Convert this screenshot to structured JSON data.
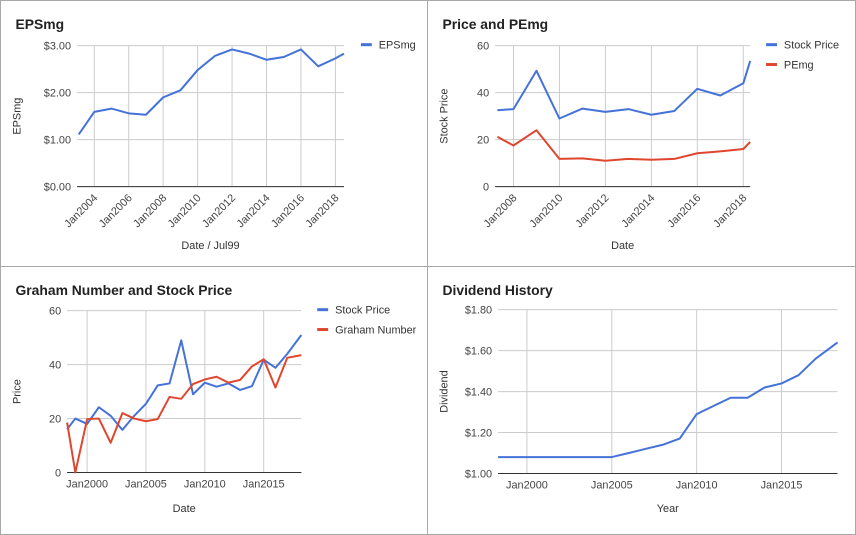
{
  "chart_data": [
    {
      "type": "line",
      "title": "EPSmg",
      "xlabel": "Date / Jul99",
      "ylabel": "EPSmg",
      "xlim": [
        2003.0,
        2018.5
      ],
      "ylim": [
        0,
        3
      ],
      "xticks": [
        2004,
        2006,
        2008,
        2010,
        2012,
        2014,
        2016,
        2018
      ],
      "xtick_labels": [
        "Jan2004",
        "Jan2006",
        "Jan2008",
        "Jan2010",
        "Jan2012",
        "Jan2014",
        "Jan2016",
        "Jan2018"
      ],
      "xtick_rotated": true,
      "yticks": [
        0,
        1,
        2,
        3
      ],
      "ytick_labels": [
        "$0.00",
        "$1.00",
        "$2.00",
        "$3.00"
      ],
      "grid": true,
      "legend_position": "top-right",
      "series": [
        {
          "name": "EPSmg",
          "color": "#4472d8",
          "x": [
            2003.1,
            2004.0,
            2005.0,
            2006.0,
            2007.0,
            2008.0,
            2009.0,
            2010.0,
            2011.0,
            2012.0,
            2013.0,
            2014.0,
            2015.0,
            2016.0,
            2017.0,
            2018.0,
            2018.5
          ],
          "y": [
            1.11,
            1.59,
            1.66,
            1.56,
            1.53,
            1.9,
            2.05,
            2.48,
            2.78,
            2.92,
            2.83,
            2.7,
            2.76,
            2.92,
            2.56,
            2.73,
            2.83
          ]
        }
      ]
    },
    {
      "type": "line",
      "title": "Price and PEmg",
      "xlabel": "Date",
      "ylabel": "Stock Price",
      "xlim": [
        2007.2,
        2018.3
      ],
      "ylim": [
        0,
        60
      ],
      "xticks": [
        2008,
        2010,
        2012,
        2014,
        2016,
        2018
      ],
      "xtick_labels": [
        "Jan2008",
        "Jan2010",
        "Jan2012",
        "Jan2014",
        "Jan2016",
        "Jan2018"
      ],
      "xtick_rotated": true,
      "yticks": [
        0,
        20,
        40,
        60
      ],
      "ytick_labels": [
        "0",
        "20",
        "40",
        "60"
      ],
      "grid": true,
      "legend_position": "top-right",
      "series": [
        {
          "name": "Stock Price",
          "color": "#4472d8",
          "x": [
            2007.3,
            2008.0,
            2009.0,
            2010.0,
            2011.0,
            2012.0,
            2013.0,
            2014.0,
            2015.0,
            2016.0,
            2017.0,
            2018.0,
            2018.3
          ],
          "y": [
            32.5,
            33.0,
            49.3,
            29.0,
            33.2,
            31.8,
            33.0,
            30.6,
            32.2,
            41.6,
            38.8,
            44.0,
            53.5
          ]
        },
        {
          "name": "PEmg",
          "color": "#e0462d",
          "x": [
            2007.3,
            2008.0,
            2009.0,
            2010.0,
            2011.0,
            2012.0,
            2013.0,
            2014.0,
            2015.0,
            2016.0,
            2017.0,
            2018.0,
            2018.3
          ],
          "y": [
            21.2,
            17.5,
            24.0,
            11.8,
            12.0,
            11.0,
            11.8,
            11.4,
            11.8,
            14.2,
            15.0,
            16.0,
            19.0
          ]
        }
      ]
    },
    {
      "type": "line",
      "title": "Graham Number and Stock Price",
      "xlabel": "Date",
      "ylabel": "Price",
      "xlim": [
        1998.3,
        2018.2
      ],
      "ylim": [
        0,
        60
      ],
      "xticks": [
        2000,
        2005,
        2010,
        2015
      ],
      "xtick_labels": [
        "Jan2000",
        "Jan2005",
        "Jan2010",
        "Jan2015"
      ],
      "xtick_rotated": false,
      "yticks": [
        0,
        20,
        40,
        60
      ],
      "ytick_labels": [
        "0",
        "20",
        "40",
        "60"
      ],
      "grid": true,
      "legend_position": "top-right",
      "series": [
        {
          "name": "Stock Price",
          "color": "#4472d8",
          "x": [
            1998.3,
            1999.0,
            2000.0,
            2001.0,
            2002.0,
            2003.0,
            2004.0,
            2005.0,
            2006.0,
            2007.0,
            2008.0,
            2009.0,
            2010.0,
            2011.0,
            2012.0,
            2013.0,
            2014.0,
            2015.0,
            2016.0,
            2017.0,
            2018.2
          ],
          "y": [
            16.0,
            20.0,
            18.0,
            24.2,
            21.0,
            15.8,
            21.0,
            25.5,
            32.3,
            33.0,
            49.0,
            29.0,
            33.3,
            31.8,
            33.0,
            30.6,
            32.0,
            41.8,
            38.8,
            44.0,
            51.0
          ]
        },
        {
          "name": "Graham Number",
          "color": "#e0462d",
          "x": [
            1998.3,
            1999.0,
            2000.0,
            2001.0,
            2002.0,
            2003.0,
            2004.0,
            2005.0,
            2006.0,
            2007.0,
            2008.0,
            2009.0,
            2010.0,
            2011.0,
            2012.0,
            2013.0,
            2014.0,
            2015.0,
            2016.0,
            2017.0,
            2018.2
          ],
          "y": [
            18.5,
            0.0,
            19.8,
            20.0,
            11.0,
            22.0,
            20.0,
            19.0,
            19.8,
            28.0,
            27.3,
            32.8,
            34.5,
            35.5,
            33.3,
            34.3,
            39.3,
            42.0,
            31.5,
            42.5,
            43.5
          ]
        }
      ]
    },
    {
      "type": "line",
      "title": "Dividend History",
      "xlabel": "Year",
      "ylabel": "Dividend",
      "xlim": [
        1998.3,
        2018.3
      ],
      "ylim": [
        1.0,
        1.8
      ],
      "xticks": [
        2000,
        2005,
        2010,
        2015
      ],
      "xtick_labels": [
        "Jan2000",
        "Jan2005",
        "Jan2010",
        "Jan2015"
      ],
      "xtick_rotated": false,
      "yticks": [
        1.0,
        1.2,
        1.4,
        1.6,
        1.8
      ],
      "ytick_labels": [
        "$1.00",
        "$1.20",
        "$1.40",
        "$1.60",
        "$1.80"
      ],
      "grid": true,
      "legend_position": "none",
      "series": [
        {
          "name": "",
          "color": "#4472d8",
          "x": [
            1998.3,
            2005.0,
            2006.0,
            2007.0,
            2008.0,
            2009.0,
            2010.0,
            2011.0,
            2012.0,
            2013.0,
            2014.0,
            2015.0,
            2016.0,
            2017.0,
            2018.3
          ],
          "y": [
            1.08,
            1.08,
            1.1,
            1.12,
            1.14,
            1.17,
            1.29,
            1.33,
            1.37,
            1.37,
            1.42,
            1.44,
            1.48,
            1.56,
            1.64
          ]
        }
      ]
    }
  ]
}
